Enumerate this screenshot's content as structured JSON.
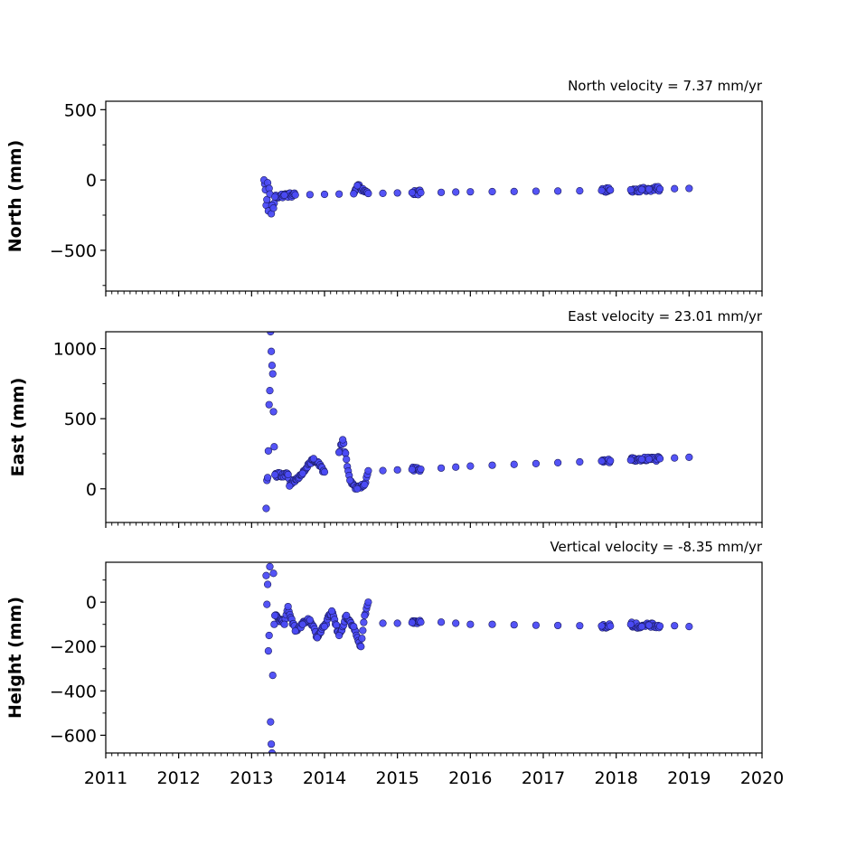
{
  "chart_data": [
    {
      "type": "scatter",
      "title": "North velocity = 7.37 mm/yr",
      "ylabel": "North (mm)",
      "xlim": [
        2011,
        2020
      ],
      "ylim": [
        -790,
        560
      ],
      "yticks": [
        500,
        0,
        -500
      ],
      "ytick_labels": [
        "500",
        "0",
        "−500"
      ],
      "xtick_labels": [],
      "marker_color": "#4b4bf5",
      "series": [
        {
          "x": [
            2013.17,
            2013.19,
            2013.2,
            2013.21,
            2013.22,
            2013.23,
            2013.24,
            2013.25,
            2013.27,
            2013.28,
            2013.3,
            2013.32,
            2013.45,
            2013.6,
            2013.8,
            2014.0,
            2014.2,
            2014.4,
            2014.45,
            2014.6,
            2014.8,
            2015.0,
            2015.2,
            2015.32,
            2015.6,
            2015.8,
            2016.0,
            2016.3,
            2016.6,
            2016.9,
            2017.2,
            2017.5,
            2017.8,
            2017.92,
            2018.2,
            2018.35,
            2018.45,
            2018.6,
            2018.8,
            2019.0
          ],
          "y": [
            0,
            -70,
            -180,
            -140,
            -20,
            -220,
            -60,
            -100,
            -240,
            -180,
            -200,
            -120,
            -108,
            -106,
            -104,
            -102,
            -100,
            -98,
            -40,
            -96,
            -95,
            -92,
            -90,
            -90,
            -88,
            -86,
            -84,
            -83,
            -82,
            -80,
            -79,
            -77,
            -75,
            -72,
            -70,
            -68,
            -66,
            -64,
            -62,
            -60
          ]
        }
      ]
    },
    {
      "type": "scatter",
      "title": "East velocity = 23.01 mm/yr",
      "ylabel": "East (mm)",
      "xlim": [
        2011,
        2020
      ],
      "ylim": [
        -240,
        1120
      ],
      "yticks": [
        1000,
        500,
        0
      ],
      "ytick_labels": [
        "1000",
        "500",
        "0"
      ],
      "xtick_labels": [],
      "marker_color": "#4b4bf5",
      "series": [
        {
          "x": [
            2013.2,
            2013.21,
            2013.22,
            2013.23,
            2013.24,
            2013.25,
            2013.26,
            2013.27,
            2013.28,
            2013.29,
            2013.3,
            2013.31,
            2013.32,
            2013.5,
            2013.52,
            2013.7,
            2013.85,
            2014.0,
            2014.2,
            2014.25,
            2014.35,
            2014.45,
            2014.55,
            2014.6,
            2014.8,
            2015.0,
            2015.2,
            2015.32,
            2015.6,
            2015.8,
            2016.0,
            2016.3,
            2016.6,
            2016.9,
            2017.2,
            2017.5,
            2017.8,
            2017.92,
            2018.2,
            2018.35,
            2018.45,
            2018.6,
            2018.8,
            2019.0
          ],
          "y": [
            -140,
            60,
            80,
            270,
            600,
            700,
            1120,
            980,
            880,
            820,
            550,
            300,
            100,
            102,
            20,
            110,
            215,
            120,
            260,
            350,
            60,
            0,
            30,
            128,
            130,
            135,
            138,
            140,
            148,
            155,
            162,
            168,
            174,
            180,
            186,
            192,
            198,
            200,
            205,
            210,
            212,
            215,
            220,
            225
          ]
        }
      ]
    },
    {
      "type": "scatter",
      "title": "Vertical velocity = -8.35 mm/yr",
      "ylabel": "Height (mm)",
      "xlim": [
        2011,
        2020
      ],
      "ylim": [
        -680,
        180
      ],
      "yticks": [
        0,
        -200,
        -400,
        -600
      ],
      "ytick_labels": [
        "0",
        "−200",
        "−400",
        "−600"
      ],
      "xtick_labels": [
        "2011",
        "2012",
        "2013",
        "2014",
        "2015",
        "2016",
        "2017",
        "2018",
        "2019",
        "2020"
      ],
      "marker_color": "#4b4bf5",
      "series": [
        {
          "x": [
            2013.2,
            2013.21,
            2013.22,
            2013.23,
            2013.24,
            2013.25,
            2013.26,
            2013.27,
            2013.28,
            2013.29,
            2013.3,
            2013.31,
            2013.32,
            2013.45,
            2013.5,
            2013.6,
            2013.7,
            2013.8,
            2013.9,
            2014.0,
            2014.1,
            2014.2,
            2014.3,
            2014.4,
            2014.5,
            2014.55,
            2014.6,
            2014.8,
            2015.0,
            2015.2,
            2015.32,
            2015.6,
            2015.8,
            2016.0,
            2016.3,
            2016.6,
            2016.9,
            2017.2,
            2017.5,
            2017.8,
            2017.92,
            2018.2,
            2018.35,
            2018.45,
            2018.6,
            2018.8,
            2019.0
          ],
          "y": [
            120,
            -10,
            80,
            -220,
            -150,
            160,
            -540,
            -640,
            -680,
            -330,
            130,
            -100,
            -60,
            -100,
            -20,
            -130,
            -100,
            -80,
            -160,
            -110,
            -40,
            -150,
            -60,
            -110,
            -200,
            -60,
            0,
            -95,
            -95,
            -92,
            -90,
            -90,
            -95,
            -100,
            -100,
            -102,
            -104,
            -105,
            -106,
            -107,
            -108,
            -100,
            -110,
            -104,
            -108,
            -106,
            -110
          ]
        }
      ]
    }
  ]
}
